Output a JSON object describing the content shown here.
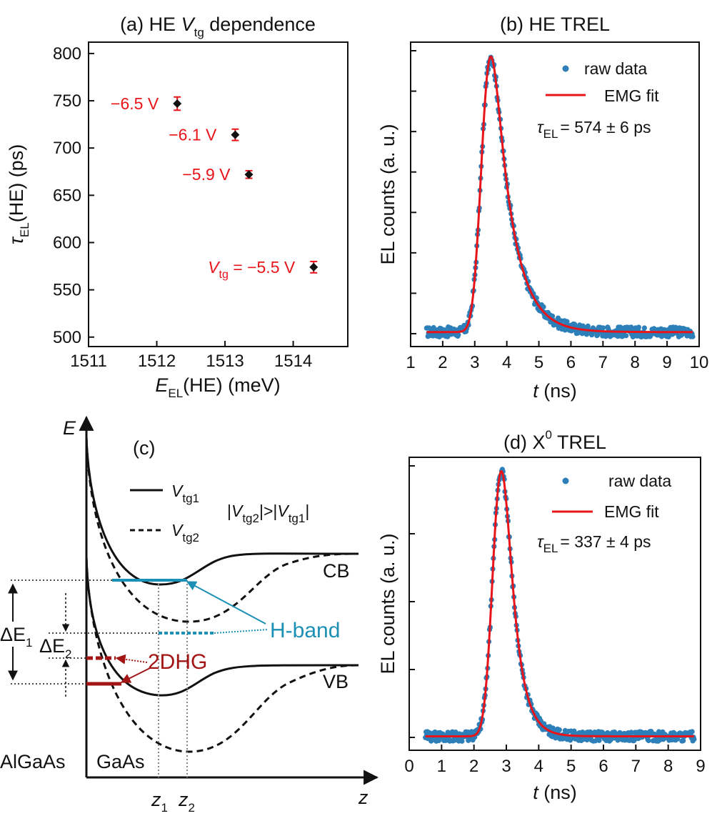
{
  "colors": {
    "accent_blue": "#2c7fb8",
    "fit_red": "#e8141a",
    "label_red": "#e8141a",
    "hband": "#1c8fb5",
    "hole": "#a31515",
    "axis": "#111111"
  },
  "chart_data": [
    {
      "id": "a",
      "type": "scatter",
      "title": {
        "prefix": "(a) HE ",
        "var": "V",
        "sub": "tg",
        "suffix": " dependence"
      },
      "xlabel": {
        "var": "E",
        "sub": "EL",
        "rest": "(HE) (meV)"
      },
      "ylabel": {
        "var": "τ",
        "sub": "EL",
        "rest": "(HE) (ps)"
      },
      "xlim": [
        1511,
        1514.8
      ],
      "ylim": [
        490,
        812
      ],
      "xticks": [
        1511,
        1512,
        1513,
        1514
      ],
      "yticks": [
        500,
        550,
        600,
        650,
        700,
        750,
        800
      ],
      "points": [
        {
          "x": 1512.3,
          "y": 747,
          "err": 7,
          "label": "−6.5 V"
        },
        {
          "x": 1513.15,
          "y": 714,
          "err": 6,
          "label": "−6.1 V"
        },
        {
          "x": 1513.35,
          "y": 672,
          "err": 4,
          "label": "−5.9 V"
        },
        {
          "x": 1514.3,
          "y": 574,
          "err": 6,
          "label_var": "V",
          "label_sub": "tg",
          "label": " = −5.5 V"
        }
      ]
    },
    {
      "id": "b",
      "type": "scatter+line",
      "title": "(b) HE TREL",
      "xlabel": {
        "var": "t",
        "rest": " (ns)"
      },
      "ylabel": "EL counts (a. u.)",
      "xlim": [
        1,
        10
      ],
      "ylim": [
        0,
        1.05
      ],
      "xticks": [
        1,
        2,
        3,
        4,
        5,
        6,
        7,
        8,
        9,
        10
      ],
      "ytick_count": 8,
      "data_range": [
        1.5,
        9.8
      ],
      "baseline": 0.05,
      "peak": 1.0,
      "emg": {
        "mu": 3.25,
        "sigma": 0.22,
        "tau": 0.574
      },
      "legend": {
        "raw": "raw data",
        "fit": "EMG fit"
      },
      "tau_text": {
        "var": "τ",
        "sub": "EL",
        "rest": "= 574 ± 6 ps"
      }
    },
    {
      "id": "c",
      "type": "diagram",
      "label": "(c)",
      "axis_y": "E",
      "axis_x": "z",
      "legend": {
        "solid_var": "V",
        "solid_sub": "tg1",
        "dash_var": "V",
        "dash_sub": "tg2",
        "relation": {
          "a": "|",
          "v1": "V",
          "s1": "tg2",
          "mid": "|>|",
          "v2": "V",
          "s2": "tg1",
          "end": "|"
        }
      },
      "band_labels": {
        "cb": "CB",
        "vb": "VB"
      },
      "hband": "H-band",
      "hole": "2DHG",
      "delta1": {
        "d": "ΔE",
        "sub": "1"
      },
      "delta2": {
        "d": "ΔE",
        "sub": "2"
      },
      "regions": {
        "left": "AlGaAs",
        "right": "GaAs"
      },
      "z1": {
        "v": "z",
        "s": "1"
      },
      "z2": {
        "v": "z",
        "s": "2"
      }
    },
    {
      "id": "d",
      "type": "scatter+line",
      "title": {
        "prefix": "(d) X",
        "sup": "0",
        "suffix": " TREL"
      },
      "xlabel": {
        "var": "t",
        "rest": " (ns)"
      },
      "ylabel": "EL counts (a. u.)",
      "xlim": [
        0,
        9
      ],
      "ylim": [
        0,
        1.05
      ],
      "xticks": [
        0,
        1,
        2,
        3,
        4,
        5,
        6,
        7,
        8,
        9
      ],
      "ytick_count": 5,
      "data_range": [
        0.5,
        8.8
      ],
      "baseline": 0.05,
      "peak": 1.0,
      "emg": {
        "mu": 2.65,
        "sigma": 0.22,
        "tau": 0.337
      },
      "legend": {
        "raw": "raw data",
        "fit": "EMG fit"
      },
      "tau_text": {
        "var": "τ",
        "sub": "EL",
        "rest": "= 337 ± 4 ps"
      }
    }
  ]
}
